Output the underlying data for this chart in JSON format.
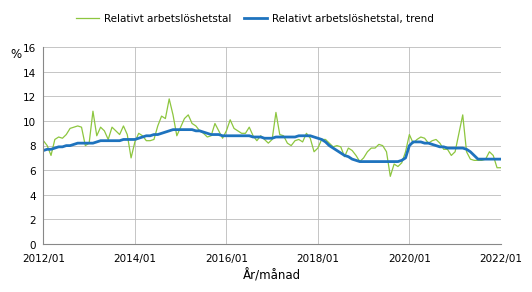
{
  "title": "",
  "ylabel": "%",
  "xlabel": "År/månad",
  "legend_raw": [
    "Relativt arbetslöshetstal",
    "Relativt arbetslöshetstal, trend"
  ],
  "raw_color": "#8dc63f",
  "trend_color": "#1e73be",
  "ylim": [
    0,
    16
  ],
  "yticks": [
    0,
    2,
    4,
    6,
    8,
    10,
    12,
    14,
    16
  ],
  "xtick_labels": [
    "2012/01",
    "2014/01",
    "2016/01",
    "2018/01",
    "2020/01",
    "2022/01"
  ],
  "background_color": "#ffffff",
  "raw_values": [
    8.4,
    8.0,
    7.2,
    8.5,
    8.7,
    8.6,
    8.9,
    9.4,
    9.5,
    9.6,
    9.5,
    8.0,
    8.2,
    10.8,
    8.8,
    9.5,
    9.2,
    8.5,
    9.5,
    9.2,
    8.9,
    9.6,
    8.9,
    7.0,
    8.3,
    9.0,
    8.8,
    8.4,
    8.4,
    8.5,
    9.6,
    10.4,
    10.2,
    11.8,
    10.5,
    8.8,
    9.5,
    10.2,
    10.5,
    9.8,
    9.6,
    9.2,
    9.0,
    8.7,
    8.8,
    9.8,
    9.2,
    8.6,
    9.2,
    10.1,
    9.4,
    9.2,
    9.0,
    9.0,
    9.5,
    8.8,
    8.4,
    8.8,
    8.5,
    8.2,
    8.5,
    10.7,
    8.9,
    8.8,
    8.2,
    8.0,
    8.4,
    8.5,
    8.3,
    9.0,
    8.6,
    7.5,
    7.8,
    8.5,
    8.5,
    8.2,
    7.9,
    8.0,
    7.9,
    7.1,
    7.8,
    7.6,
    7.2,
    6.7,
    7.0,
    7.5,
    7.8,
    7.8,
    8.1,
    8.0,
    7.5,
    5.5,
    6.5,
    6.3,
    6.6,
    7.5,
    8.9,
    8.2,
    8.5,
    8.7,
    8.6,
    8.2,
    8.4,
    8.5,
    8.2,
    7.7,
    7.7,
    7.2,
    7.5,
    9.0,
    10.5,
    7.5,
    6.9,
    6.8,
    6.8,
    6.8,
    6.9,
    7.5,
    7.2,
    6.2,
    6.2
  ],
  "trend_values": [
    7.6,
    7.7,
    7.7,
    7.8,
    7.9,
    7.9,
    8.0,
    8.0,
    8.1,
    8.2,
    8.2,
    8.2,
    8.2,
    8.2,
    8.3,
    8.4,
    8.4,
    8.4,
    8.4,
    8.4,
    8.4,
    8.5,
    8.5,
    8.5,
    8.5,
    8.6,
    8.7,
    8.8,
    8.8,
    8.9,
    8.9,
    9.0,
    9.1,
    9.2,
    9.3,
    9.3,
    9.3,
    9.3,
    9.3,
    9.3,
    9.2,
    9.2,
    9.1,
    9.0,
    8.9,
    8.9,
    8.9,
    8.8,
    8.8,
    8.8,
    8.8,
    8.8,
    8.8,
    8.8,
    8.8,
    8.7,
    8.7,
    8.7,
    8.6,
    8.6,
    8.6,
    8.7,
    8.7,
    8.7,
    8.7,
    8.7,
    8.7,
    8.8,
    8.8,
    8.8,
    8.8,
    8.7,
    8.6,
    8.5,
    8.3,
    8.0,
    7.8,
    7.6,
    7.4,
    7.2,
    7.1,
    6.9,
    6.8,
    6.7,
    6.7,
    6.7,
    6.7,
    6.7,
    6.7,
    6.7,
    6.7,
    6.7,
    6.7,
    6.7,
    6.8,
    7.0,
    8.0,
    8.3,
    8.3,
    8.3,
    8.2,
    8.2,
    8.1,
    8.0,
    7.9,
    7.9,
    7.8,
    7.8,
    7.8,
    7.8,
    7.8,
    7.7,
    7.5,
    7.2,
    6.9,
    6.9,
    6.9,
    6.9,
    6.9,
    6.9,
    6.9
  ]
}
